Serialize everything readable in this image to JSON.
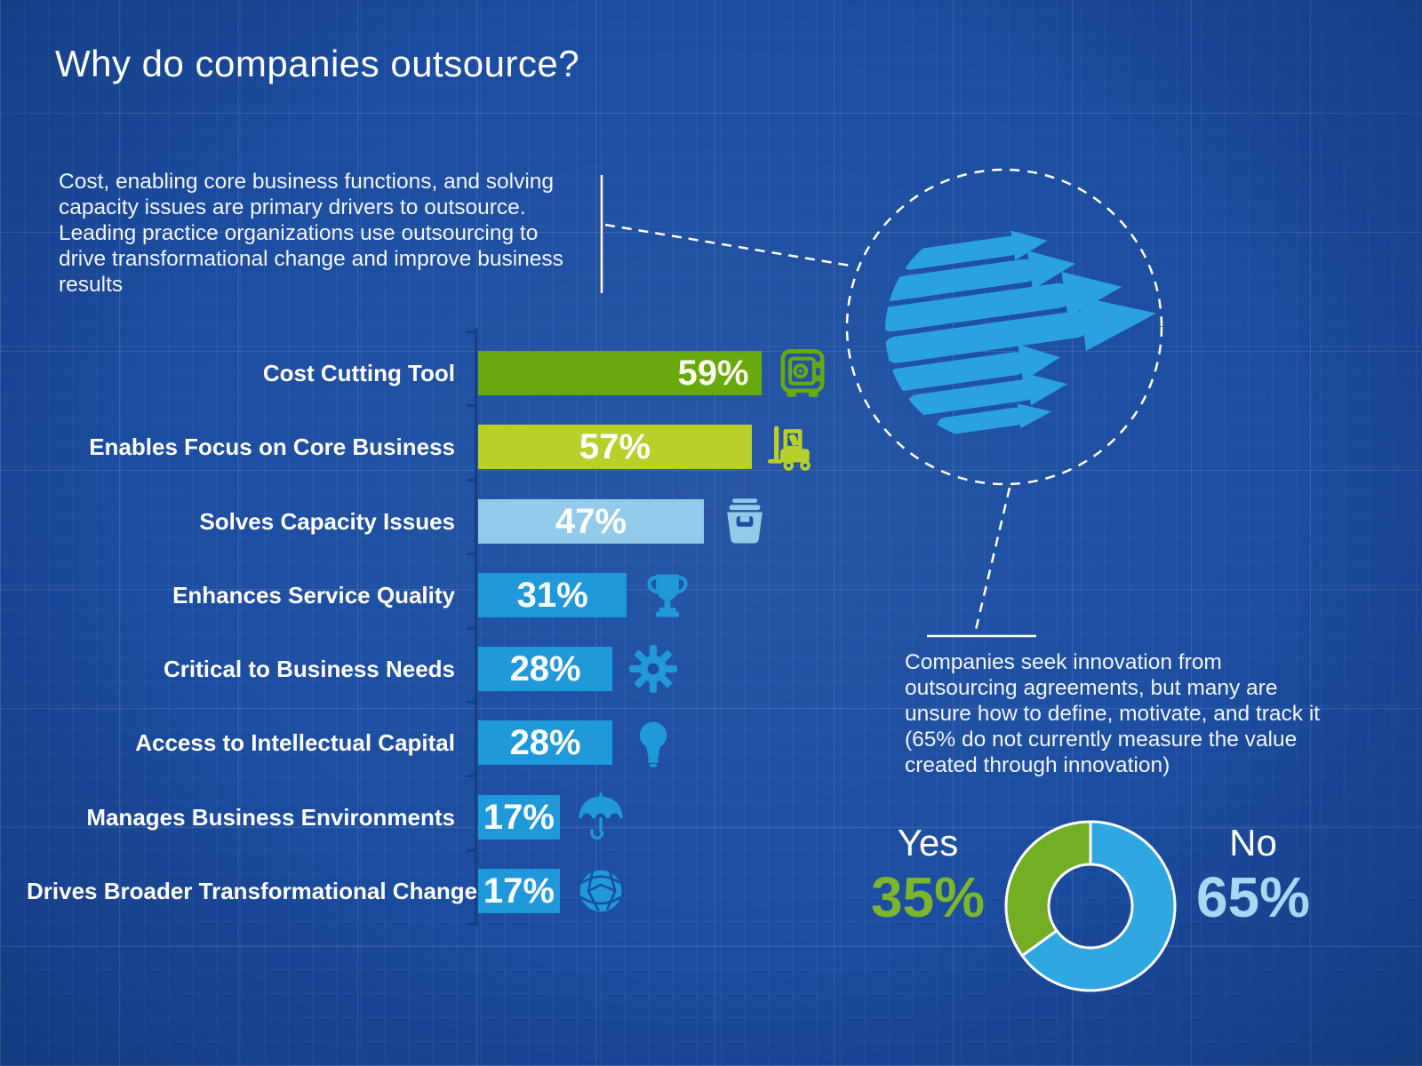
{
  "title": "Why do companies outsource?",
  "intro_text": "Cost, enabling core business functions, and solving capacity issues are primary drivers to outsource. Leading practice organizations use outsourcing to drive transformational change and improve business results",
  "innovation_text": "Companies seek innovation from outsourcing agreements, but many are unsure how to define, motivate, and track it (65% do not currently measure the value created through innovation)",
  "colors": {
    "background": "#1c4da0",
    "axis": "#16417f",
    "white": "#ffffff",
    "olive_green": "#68a90e",
    "lime_green": "#b9cf2b",
    "light_blue": "#92cbe9",
    "medium_blue": "#1f99da",
    "globe_blue": "#2aa2e2",
    "donut_green": "#73ae25",
    "donut_blue": "#2fa7e1",
    "yes_pct_text": "#7db52d",
    "no_pct_text": "#a7d7f2"
  },
  "chart_data": [
    {
      "type": "bar",
      "orientation": "horizontal",
      "categories": [
        "Cost Cutting Tool",
        "Enables Focus on Core Business",
        "Solves Capacity Issues",
        "Enhances Service Quality",
        "Critical to Business Needs",
        "Access to Intellectual Capital",
        "Manages Business Environments",
        "Drives Broader Transformational Change"
      ],
      "values": [
        59,
        57,
        47,
        31,
        28,
        28,
        17,
        17
      ],
      "value_labels": [
        "59%",
        "57%",
        "47%",
        "31%",
        "28%",
        "28%",
        "17%",
        "17%"
      ],
      "bar_colors": [
        "#68a90e",
        "#b9cf2b",
        "#92cbe9",
        "#1f99da",
        "#1f99da",
        "#1f99da",
        "#1f99da",
        "#1f99da"
      ],
      "icons": [
        "safe-icon",
        "forklift-icon",
        "storage-box-icon",
        "trophy-icon",
        "gear-icon",
        "lightbulb-icon",
        "umbrella-icon",
        "network-globe-icon"
      ],
      "xlim": [
        0,
        100
      ],
      "grid": false,
      "value_label_position": [
        "inside-right",
        "inside-center",
        "inside-center",
        "inside-center",
        "inside-center",
        "inside-center",
        "inside-center",
        "inside-center"
      ]
    },
    {
      "type": "pie",
      "donut": true,
      "labels": [
        "Yes",
        "No"
      ],
      "values": [
        35,
        65
      ],
      "value_labels": [
        "35%",
        "65%"
      ],
      "slice_colors": [
        "#73ae25",
        "#2fa7e1"
      ],
      "start": "top",
      "clockwise_first_slice": "No",
      "legend_position": "sides"
    }
  ]
}
